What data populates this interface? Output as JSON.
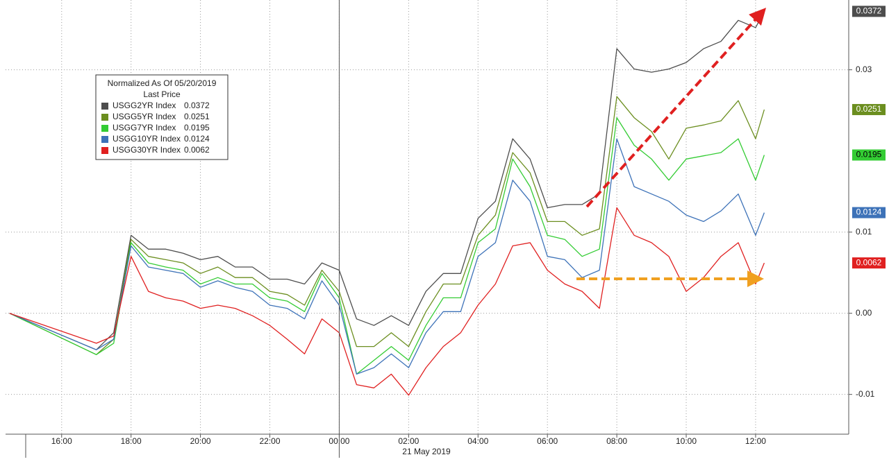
{
  "chart_data": {
    "type": "line",
    "legend": {
      "title": "Normalized As Of 05/20/2019",
      "subtitle": "Last Price"
    },
    "x_date_label": "21 May 2019",
    "x": [
      "2019-05-20T14:30",
      "2019-05-20T17:00",
      "2019-05-20T17:30",
      "2019-05-20T18:00",
      "2019-05-20T18:30",
      "2019-05-20T19:00",
      "2019-05-20T19:30",
      "2019-05-20T20:00",
      "2019-05-20T20:30",
      "2019-05-20T21:00",
      "2019-05-20T21:30",
      "2019-05-20T22:00",
      "2019-05-20T22:30",
      "2019-05-20T23:00",
      "2019-05-20T23:30",
      "2019-05-21T00:00",
      "2019-05-21T00:30",
      "2019-05-21T01:00",
      "2019-05-21T01:30",
      "2019-05-21T02:00",
      "2019-05-21T02:30",
      "2019-05-21T03:00",
      "2019-05-21T03:30",
      "2019-05-21T04:00",
      "2019-05-21T04:30",
      "2019-05-21T05:00",
      "2019-05-21T05:30",
      "2019-05-21T06:00",
      "2019-05-21T06:30",
      "2019-05-21T07:00",
      "2019-05-21T07:30",
      "2019-05-21T08:00",
      "2019-05-21T08:30",
      "2019-05-21T09:00",
      "2019-05-21T09:30",
      "2019-05-21T10:00",
      "2019-05-21T10:30",
      "2019-05-21T11:00",
      "2019-05-21T11:30",
      "2019-05-21T12:00",
      "2019-05-21T12:15"
    ],
    "series": [
      {
        "name": "USGG2YR Index",
        "color": "#4d4d4d",
        "tag_text": "#ffffff",
        "values": [
          0,
          -0.0045,
          -0.0024,
          0.0096,
          0.0079,
          0.0079,
          0.0074,
          0.0066,
          0.007,
          0.0057,
          0.0057,
          0.0042,
          0.0042,
          0.0036,
          0.0062,
          0.0053,
          -0.0007,
          -0.0015,
          -0.0003,
          -0.0015,
          0.0027,
          0.0049,
          0.0049,
          0.0117,
          0.0138,
          0.0215,
          0.019,
          0.013,
          0.0134,
          0.0134,
          0.0147,
          0.0326,
          0.0301,
          0.0297,
          0.0301,
          0.0309,
          0.0326,
          0.0335,
          0.0361,
          0.0352,
          0.0372
        ]
      },
      {
        "name": "USGG5YR Index",
        "color": "#6b8e1f",
        "tag_text": "#ffffff",
        "values": [
          0,
          -0.0051,
          -0.0032,
          0.0091,
          0.007,
          0.0066,
          0.0062,
          0.0049,
          0.0057,
          0.0044,
          0.0044,
          0.0027,
          0.0023,
          0.001,
          0.0053,
          0.0027,
          -0.0041,
          -0.0041,
          -0.0024,
          -0.0041,
          0.0002,
          0.0036,
          0.0036,
          0.0096,
          0.0121,
          0.0198,
          0.0173,
          0.0113,
          0.0113,
          0.0096,
          0.0104,
          0.0267,
          0.0241,
          0.0224,
          0.019,
          0.0228,
          0.0232,
          0.0237,
          0.0262,
          0.0215,
          0.0251
        ]
      },
      {
        "name": "USGG7YR Index",
        "color": "#33cc33",
        "tag_text": "#000000",
        "values": [
          0,
          -0.0051,
          -0.0037,
          0.0087,
          0.0062,
          0.0057,
          0.0053,
          0.0036,
          0.0044,
          0.0036,
          0.0036,
          0.0019,
          0.0015,
          0.0002,
          0.0049,
          0.0019,
          -0.0075,
          -0.0058,
          -0.0041,
          -0.0058,
          -0.0015,
          0.0019,
          0.0019,
          0.0087,
          0.0104,
          0.019,
          0.0156,
          0.0096,
          0.0091,
          0.007,
          0.0079,
          0.0241,
          0.0207,
          0.019,
          0.0164,
          0.019,
          0.0194,
          0.0198,
          0.0215,
          0.0164,
          0.0195
        ]
      },
      {
        "name": "USGG10YR Index",
        "color": "#3d72b8",
        "tag_text": "#ffffff",
        "values": [
          0,
          -0.0045,
          -0.0032,
          0.0083,
          0.0057,
          0.0053,
          0.0049,
          0.0032,
          0.004,
          0.0032,
          0.0027,
          0.001,
          0.0006,
          -0.0007,
          0.004,
          0.001,
          -0.0075,
          -0.0067,
          -0.005,
          -0.0067,
          -0.0024,
          0.0002,
          0.0002,
          0.007,
          0.0087,
          0.0164,
          0.0138,
          0.007,
          0.0066,
          0.0044,
          0.0053,
          0.0215,
          0.0156,
          0.0147,
          0.0138,
          0.0121,
          0.0113,
          0.0126,
          0.0147,
          0.0096,
          0.0124
        ]
      },
      {
        "name": "USGG30YR Index",
        "color": "#e02020",
        "tag_text": "#ffffff",
        "values": [
          0,
          -0.0037,
          -0.0028,
          0.007,
          0.0027,
          0.0019,
          0.0015,
          0.0006,
          0.001,
          0.0006,
          -0.0003,
          -0.0015,
          -0.0032,
          -0.005,
          -0.0007,
          -0.0024,
          -0.0088,
          -0.0092,
          -0.0075,
          -0.0101,
          -0.0067,
          -0.0041,
          -0.0024,
          0.001,
          0.0036,
          0.0083,
          0.0087,
          0.0053,
          0.0036,
          0.0027,
          0.0006,
          0.013,
          0.0096,
          0.0087,
          0.007,
          0.0027,
          0.0044,
          0.007,
          0.0087,
          0.0036,
          0.0062
        ]
      }
    ],
    "xlim": [
      "2019-05-20T14:23",
      "2019-05-21T14:41"
    ],
    "xticks": [
      {
        "value": "2019-05-20T16:00",
        "label": "16:00"
      },
      {
        "value": "2019-05-20T18:00",
        "label": "18:00"
      },
      {
        "value": "2019-05-20T20:00",
        "label": "20:00"
      },
      {
        "value": "2019-05-20T22:00",
        "label": "22:00"
      },
      {
        "value": "2019-05-21T00:00",
        "label": "00:00"
      },
      {
        "value": "2019-05-21T02:00",
        "label": "02:00"
      },
      {
        "value": "2019-05-21T04:00",
        "label": "04:00"
      },
      {
        "value": "2019-05-21T06:00",
        "label": "06:00"
      },
      {
        "value": "2019-05-21T08:00",
        "label": "08:00"
      },
      {
        "value": "2019-05-21T10:00",
        "label": "10:00"
      },
      {
        "value": "2019-05-21T12:00",
        "label": "12:00"
      }
    ],
    "ylim": [
      -0.0149,
      0.0386
    ],
    "yticks": [
      -0.01,
      {
        "value": 0,
        "label": "0.00"
      },
      0.01,
      0.03
    ],
    "grid": true
  }
}
